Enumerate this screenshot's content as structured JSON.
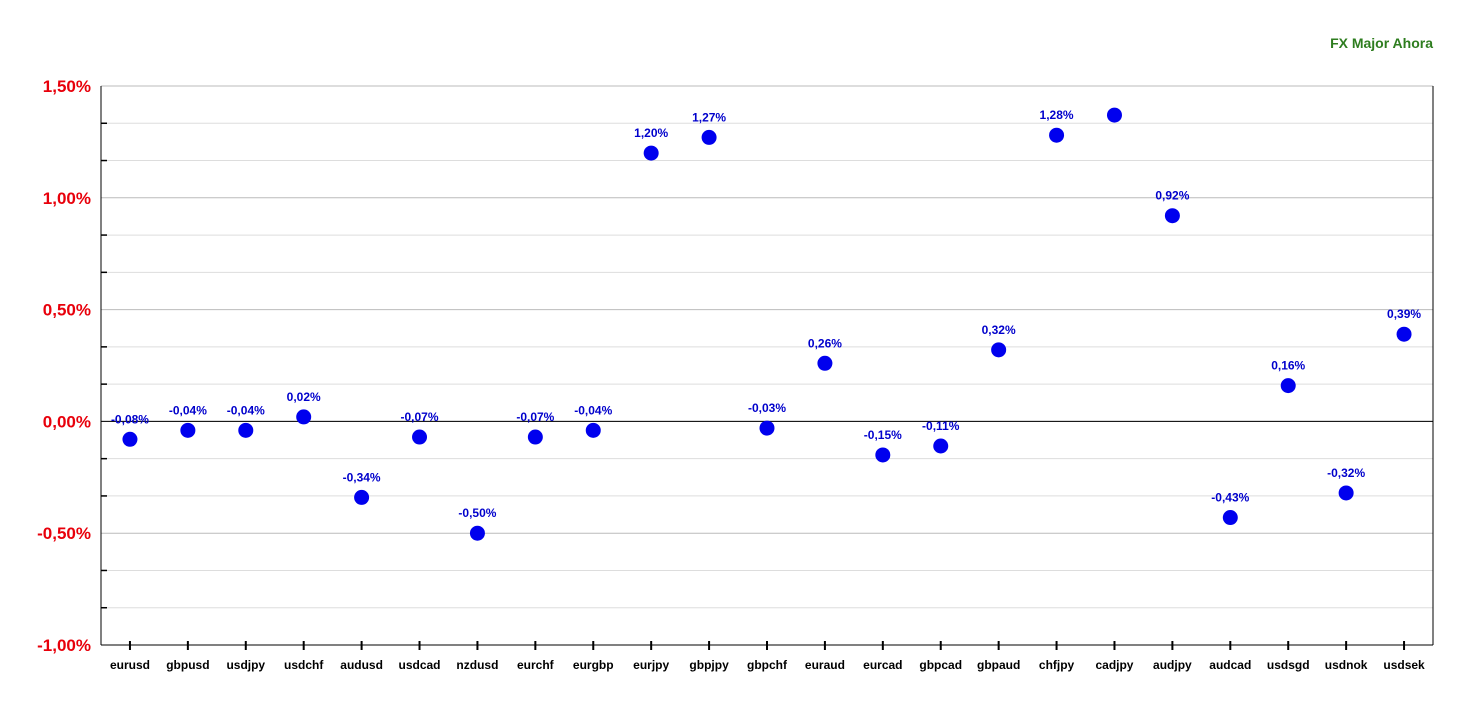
{
  "chart_data": {
    "type": "scatter",
    "title": "FX Major Ahora",
    "categories": [
      "eurusd",
      "gbpusd",
      "usdjpy",
      "usdchf",
      "audusd",
      "usdcad",
      "nzdusd",
      "eurchf",
      "eurgbp",
      "eurjpy",
      "gbpjpy",
      "gbpchf",
      "euraud",
      "eurcad",
      "gbpcad",
      "gbpaud",
      "chfjpy",
      "cadjpy",
      "audjpy",
      "audcad",
      "usdsgd",
      "usdnok",
      "usdsek"
    ],
    "values": [
      -0.08,
      -0.04,
      -0.04,
      0.02,
      -0.34,
      -0.07,
      -0.5,
      -0.07,
      -0.04,
      1.2,
      1.27,
      -0.03,
      0.26,
      -0.15,
      -0.11,
      0.32,
      1.28,
      1.37,
      0.92,
      -0.43,
      0.16,
      -0.32,
      0.39
    ],
    "data_labels": [
      "-0,08%",
      "-0,04%",
      "-0,04%",
      "0,02%",
      "-0,34%",
      "-0,07%",
      "-0,50%",
      "-0,07%",
      "-0,04%",
      "1,20%",
      "1,27%",
      "-0,03%",
      "0,26%",
      "-0,15%",
      "-0,11%",
      "0,32%",
      "1,28%",
      "",
      "0,92%",
      "-0,43%",
      "0,16%",
      "-0,32%",
      "0,39%"
    ],
    "ylim": [
      -1.0,
      1.5
    ],
    "yticks": [
      1.5,
      1.0,
      0.5,
      0.0,
      -0.5,
      -1.0
    ],
    "ytick_labels": [
      "1,50%",
      "1,00%",
      "0,50%",
      "0,00%",
      "-0,50%",
      "-1,00%"
    ],
    "xlabel": "",
    "ylabel": "",
    "grid": true,
    "colors": {
      "point": "#0000ee",
      "label": "#0000cc",
      "ytick": "#e8000b",
      "title": "#2e7d1f"
    }
  }
}
